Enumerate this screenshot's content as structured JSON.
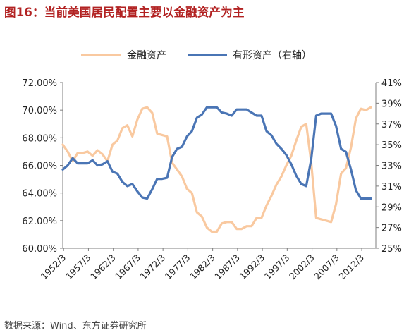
{
  "figure": {
    "title": "图16：当前美国居民配置主要以金融资产为主",
    "source": "数据来源：Wind、东方证券研究所"
  },
  "colors": {
    "title": "#b22222",
    "financial": "#f9c9a0",
    "tangible": "#4a75b5",
    "axis": "#7f7f7f",
    "text": "#222222"
  },
  "chart_data": {
    "type": "line",
    "title": "",
    "legend_position": "top",
    "grid": false,
    "x_tick_labels": [
      "1952/3",
      "1957/3",
      "1962/3",
      "1967/3",
      "1972/3",
      "1977/3",
      "1982/3",
      "1987/3",
      "1992/3",
      "1997/3",
      "2002/3",
      "2007/3",
      "2012/3"
    ],
    "x_range": [
      1952.0,
      2015.0
    ],
    "y_left": {
      "ticks": [
        "60.00%",
        "62.00%",
        "64.00%",
        "66.00%",
        "68.00%",
        "70.00%",
        "72.00%"
      ],
      "range": [
        60,
        72
      ]
    },
    "y_right": {
      "ticks": [
        "25%",
        "27%",
        "29%",
        "31%",
        "33%",
        "35%",
        "37%",
        "39%",
        "41%"
      ],
      "range": [
        25,
        41
      ]
    },
    "series": [
      {
        "name": "金融资产",
        "axis": "left",
        "x": [
          1952,
          1953,
          1954,
          1955,
          1956,
          1957,
          1958,
          1959,
          1960,
          1961,
          1962,
          1963,
          1964,
          1965,
          1966,
          1967,
          1968,
          1969,
          1970,
          1971,
          1972,
          1973,
          1974,
          1975,
          1976,
          1977,
          1978,
          1979,
          1980,
          1981,
          1982,
          1983,
          1984,
          1985,
          1986,
          1987,
          1988,
          1989,
          1990,
          1991,
          1992,
          1993,
          1994,
          1995,
          1996,
          1997,
          1998,
          1999,
          2000,
          2001,
          2002,
          2003,
          2004,
          2005,
          2006,
          2007,
          2008,
          2009,
          2010,
          2011,
          2012,
          2013,
          2014
        ],
        "values": [
          67.5,
          67.0,
          66.3,
          66.9,
          66.9,
          67.0,
          66.7,
          67.1,
          66.8,
          66.3,
          67.5,
          67.8,
          68.7,
          68.9,
          68.1,
          69.3,
          70.1,
          70.2,
          69.8,
          68.3,
          68.2,
          68.1,
          66.2,
          65.7,
          65.2,
          64.3,
          64.0,
          62.6,
          62.3,
          61.5,
          61.2,
          61.2,
          61.8,
          61.9,
          61.9,
          61.4,
          61.4,
          61.6,
          61.6,
          62.2,
          62.2,
          63.1,
          63.8,
          64.6,
          65.2,
          66.0,
          66.7,
          67.8,
          68.8,
          69.0,
          66.2,
          62.2,
          62.1,
          62.0,
          61.9,
          63.2,
          65.4,
          65.8,
          67.3,
          69.4,
          70.1,
          70.0,
          70.2
        ]
      },
      {
        "name": "有形资产（右轴）",
        "axis": "right",
        "x": [
          1952,
          1953,
          1954,
          1955,
          1956,
          1957,
          1958,
          1959,
          1960,
          1961,
          1962,
          1963,
          1964,
          1965,
          1966,
          1967,
          1968,
          1969,
          1970,
          1971,
          1972,
          1973,
          1974,
          1975,
          1976,
          1977,
          1978,
          1979,
          1980,
          1981,
          1982,
          1983,
          1984,
          1985,
          1986,
          1987,
          1988,
          1989,
          1990,
          1991,
          1992,
          1993,
          1994,
          1995,
          1996,
          1997,
          1998,
          1999,
          2000,
          2001,
          2002,
          2003,
          2004,
          2005,
          2006,
          2007,
          2008,
          2009,
          2010,
          2011,
          2012,
          2013,
          2014
        ],
        "values": [
          32.6,
          33.0,
          33.7,
          33.2,
          33.2,
          33.2,
          33.5,
          33.0,
          33.1,
          33.4,
          32.4,
          32.2,
          31.4,
          31.0,
          31.2,
          30.5,
          29.9,
          29.8,
          30.7,
          31.7,
          31.7,
          31.8,
          33.8,
          34.6,
          34.8,
          35.8,
          36.3,
          37.6,
          37.9,
          38.6,
          38.6,
          38.6,
          38.1,
          38.0,
          37.8,
          38.4,
          38.4,
          38.4,
          38.1,
          37.8,
          37.8,
          36.3,
          35.9,
          35.1,
          34.6,
          34.0,
          33.1,
          32.0,
          31.2,
          31.0,
          33.6,
          37.8,
          38.0,
          38.0,
          38.0,
          36.8,
          34.6,
          34.3,
          32.6,
          30.6,
          29.8,
          29.8,
          29.8
        ]
      }
    ]
  }
}
